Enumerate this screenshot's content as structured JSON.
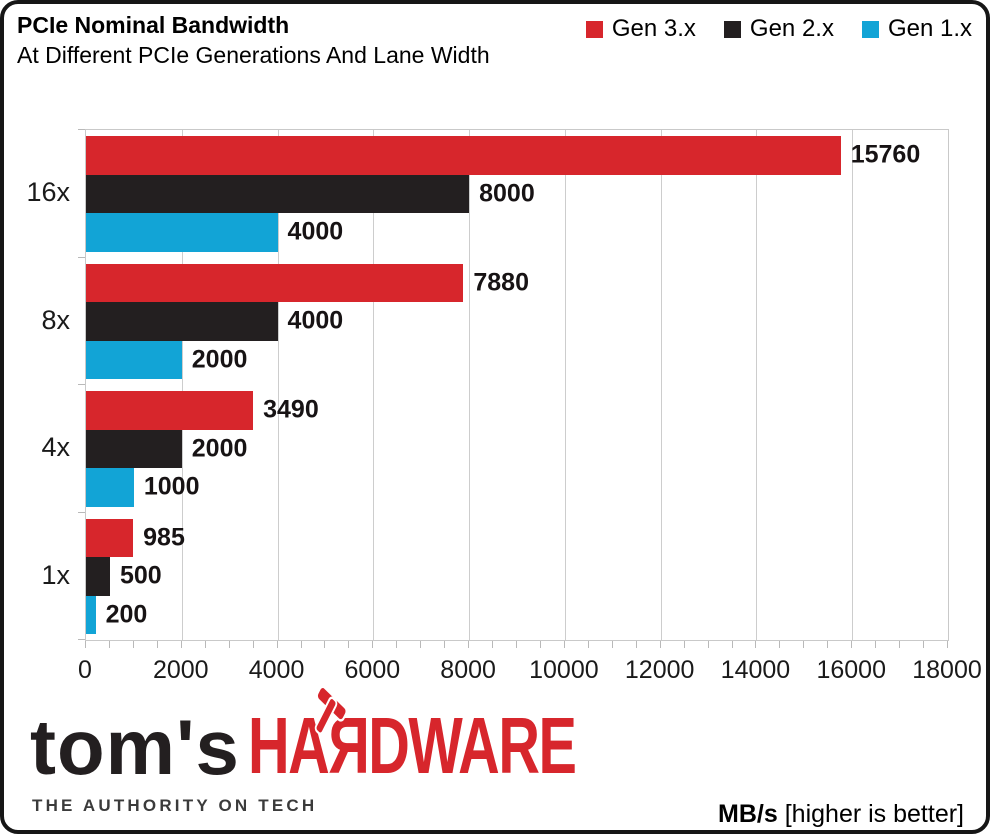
{
  "header": {
    "title": "PCIe Nominal Bandwidth",
    "subtitle": "At Different PCIe Generations And Lane Width"
  },
  "legend": [
    {
      "label": "Gen 3.x",
      "color": "#d7262c"
    },
    {
      "label": "Gen 2.x",
      "color": "#231f20"
    },
    {
      "label": "Gen 1.x",
      "color": "#12a4d6"
    }
  ],
  "chart_data": {
    "type": "bar",
    "orientation": "horizontal",
    "title": "PCIe Nominal Bandwidth",
    "subtitle": "At Different PCIe Generations And Lane Width",
    "unit": "MB/s",
    "categories": [
      "16x",
      "8x",
      "4x",
      "1x"
    ],
    "series": [
      {
        "name": "Gen 3.x",
        "color": "#d7262c",
        "values": [
          15760,
          7880,
          3490,
          985
        ]
      },
      {
        "name": "Gen 2.x",
        "color": "#231f20",
        "values": [
          8000,
          4000,
          2000,
          500
        ]
      },
      {
        "name": "Gen 1.x",
        "color": "#12a4d6",
        "values": [
          4000,
          2000,
          1000,
          200
        ]
      }
    ],
    "xlim": [
      0,
      18000
    ],
    "x_ticks": [
      0,
      2000,
      4000,
      6000,
      8000,
      10000,
      12000,
      14000,
      16000,
      18000
    ],
    "x_minor_tick_step": 500,
    "grid": true,
    "legend_position": "top-right",
    "value_labels": true
  },
  "footer": {
    "logo_primary": "tom's",
    "logo_secondary_pre": "HA",
    "logo_secondary_r": "Я",
    "logo_secondary_post": "DWARE",
    "tagline": "THE AUTHORITY ON TECH",
    "unit_label": "MB/s",
    "unit_note": "[higher is better]"
  }
}
